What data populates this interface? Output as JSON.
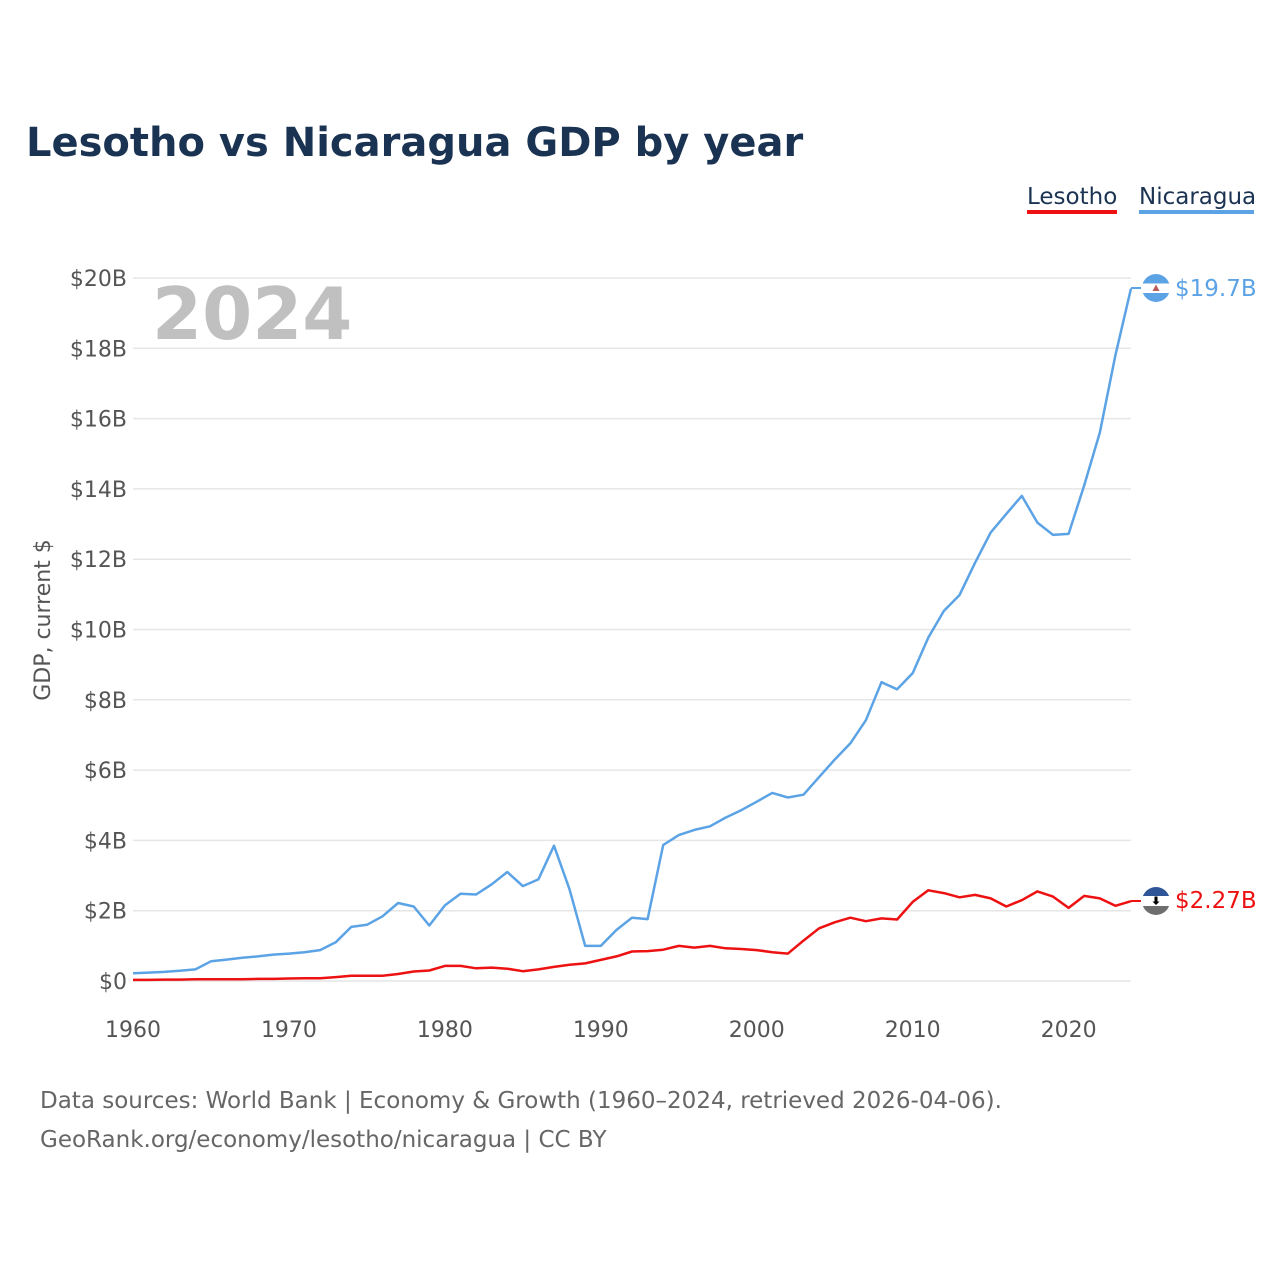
{
  "colors": {
    "lesotho": "#ee1111",
    "nicaragua": "#5ca3e6",
    "grid": "#e6e6e6",
    "title": "#1b3352"
  },
  "footer": {
    "source_line": "Data sources: World Bank | Economy & Growth (1960–2024, retrieved 2026-04-06).",
    "credit_line": "GeoRank.org/economy/lesotho/nicaragua | CC BY"
  },
  "chart_data": {
    "type": "line",
    "title": "Lesotho vs Nicaragua GDP by year",
    "ylabel": "GDP, current $",
    "xlabel": "",
    "year_watermark": "2024",
    "xlim": [
      1960,
      2024
    ],
    "ylim": [
      0,
      20
    ],
    "x_ticks": [
      1960,
      1970,
      1980,
      1990,
      2000,
      2010,
      2020
    ],
    "y_ticks": [
      {
        "value": 0,
        "label": "$0"
      },
      {
        "value": 2,
        "label": "$2B"
      },
      {
        "value": 4,
        "label": "$4B"
      },
      {
        "value": 6,
        "label": "$6B"
      },
      {
        "value": 8,
        "label": "$8B"
      },
      {
        "value": 10,
        "label": "$10B"
      },
      {
        "value": 12,
        "label": "$12B"
      },
      {
        "value": 14,
        "label": "$14B"
      },
      {
        "value": 16,
        "label": "$16B"
      },
      {
        "value": 18,
        "label": "$18B"
      },
      {
        "value": 20,
        "label": "$20B"
      }
    ],
    "legend": [
      "Lesotho",
      "Nicaragua"
    ],
    "x": [
      1960,
      1961,
      1962,
      1963,
      1964,
      1965,
      1966,
      1967,
      1968,
      1969,
      1970,
      1971,
      1972,
      1973,
      1974,
      1975,
      1976,
      1977,
      1978,
      1979,
      1980,
      1981,
      1982,
      1983,
      1984,
      1985,
      1986,
      1987,
      1988,
      1989,
      1990,
      1991,
      1992,
      1993,
      1994,
      1995,
      1996,
      1997,
      1998,
      1999,
      2000,
      2001,
      2002,
      2003,
      2004,
      2005,
      2006,
      2007,
      2008,
      2009,
      2010,
      2011,
      2012,
      2013,
      2014,
      2015,
      2016,
      2017,
      2018,
      2019,
      2020,
      2021,
      2022,
      2023,
      2024
    ],
    "series": [
      {
        "name": "Lesotho",
        "color": "#ee1111",
        "end_label": "$2.27B",
        "values": [
          0.03,
          0.03,
          0.04,
          0.04,
          0.05,
          0.05,
          0.05,
          0.05,
          0.06,
          0.06,
          0.07,
          0.08,
          0.08,
          0.11,
          0.15,
          0.15,
          0.15,
          0.2,
          0.27,
          0.3,
          0.43,
          0.43,
          0.36,
          0.38,
          0.35,
          0.28,
          0.33,
          0.4,
          0.46,
          0.5,
          0.6,
          0.7,
          0.84,
          0.85,
          0.89,
          1.0,
          0.95,
          1.0,
          0.93,
          0.91,
          0.88,
          0.82,
          0.78,
          1.15,
          1.5,
          1.67,
          1.8,
          1.7,
          1.78,
          1.75,
          2.25,
          2.58,
          2.5,
          2.38,
          2.45,
          2.35,
          2.12,
          2.3,
          2.55,
          2.4,
          2.08,
          2.42,
          2.35,
          2.14,
          2.27
        ]
      },
      {
        "name": "Nicaragua",
        "color": "#5ca3e6",
        "end_label": "$19.7B",
        "values": [
          0.22,
          0.24,
          0.26,
          0.29,
          0.33,
          0.56,
          0.61,
          0.66,
          0.7,
          0.75,
          0.78,
          0.82,
          0.88,
          1.1,
          1.54,
          1.6,
          1.84,
          2.22,
          2.12,
          1.58,
          2.15,
          2.48,
          2.46,
          2.75,
          3.1,
          2.7,
          2.89,
          3.85,
          2.6,
          1.0,
          1.0,
          1.45,
          1.8,
          1.76,
          3.87,
          4.15,
          4.3,
          4.4,
          4.65,
          4.86,
          5.1,
          5.35,
          5.22,
          5.3,
          5.8,
          6.3,
          6.76,
          7.42,
          8.5,
          8.3,
          8.76,
          9.77,
          10.53,
          10.98,
          11.9,
          12.76,
          13.29,
          13.8,
          13.04,
          12.69,
          12.72,
          14.1,
          15.6,
          17.8,
          19.7
        ]
      }
    ]
  }
}
